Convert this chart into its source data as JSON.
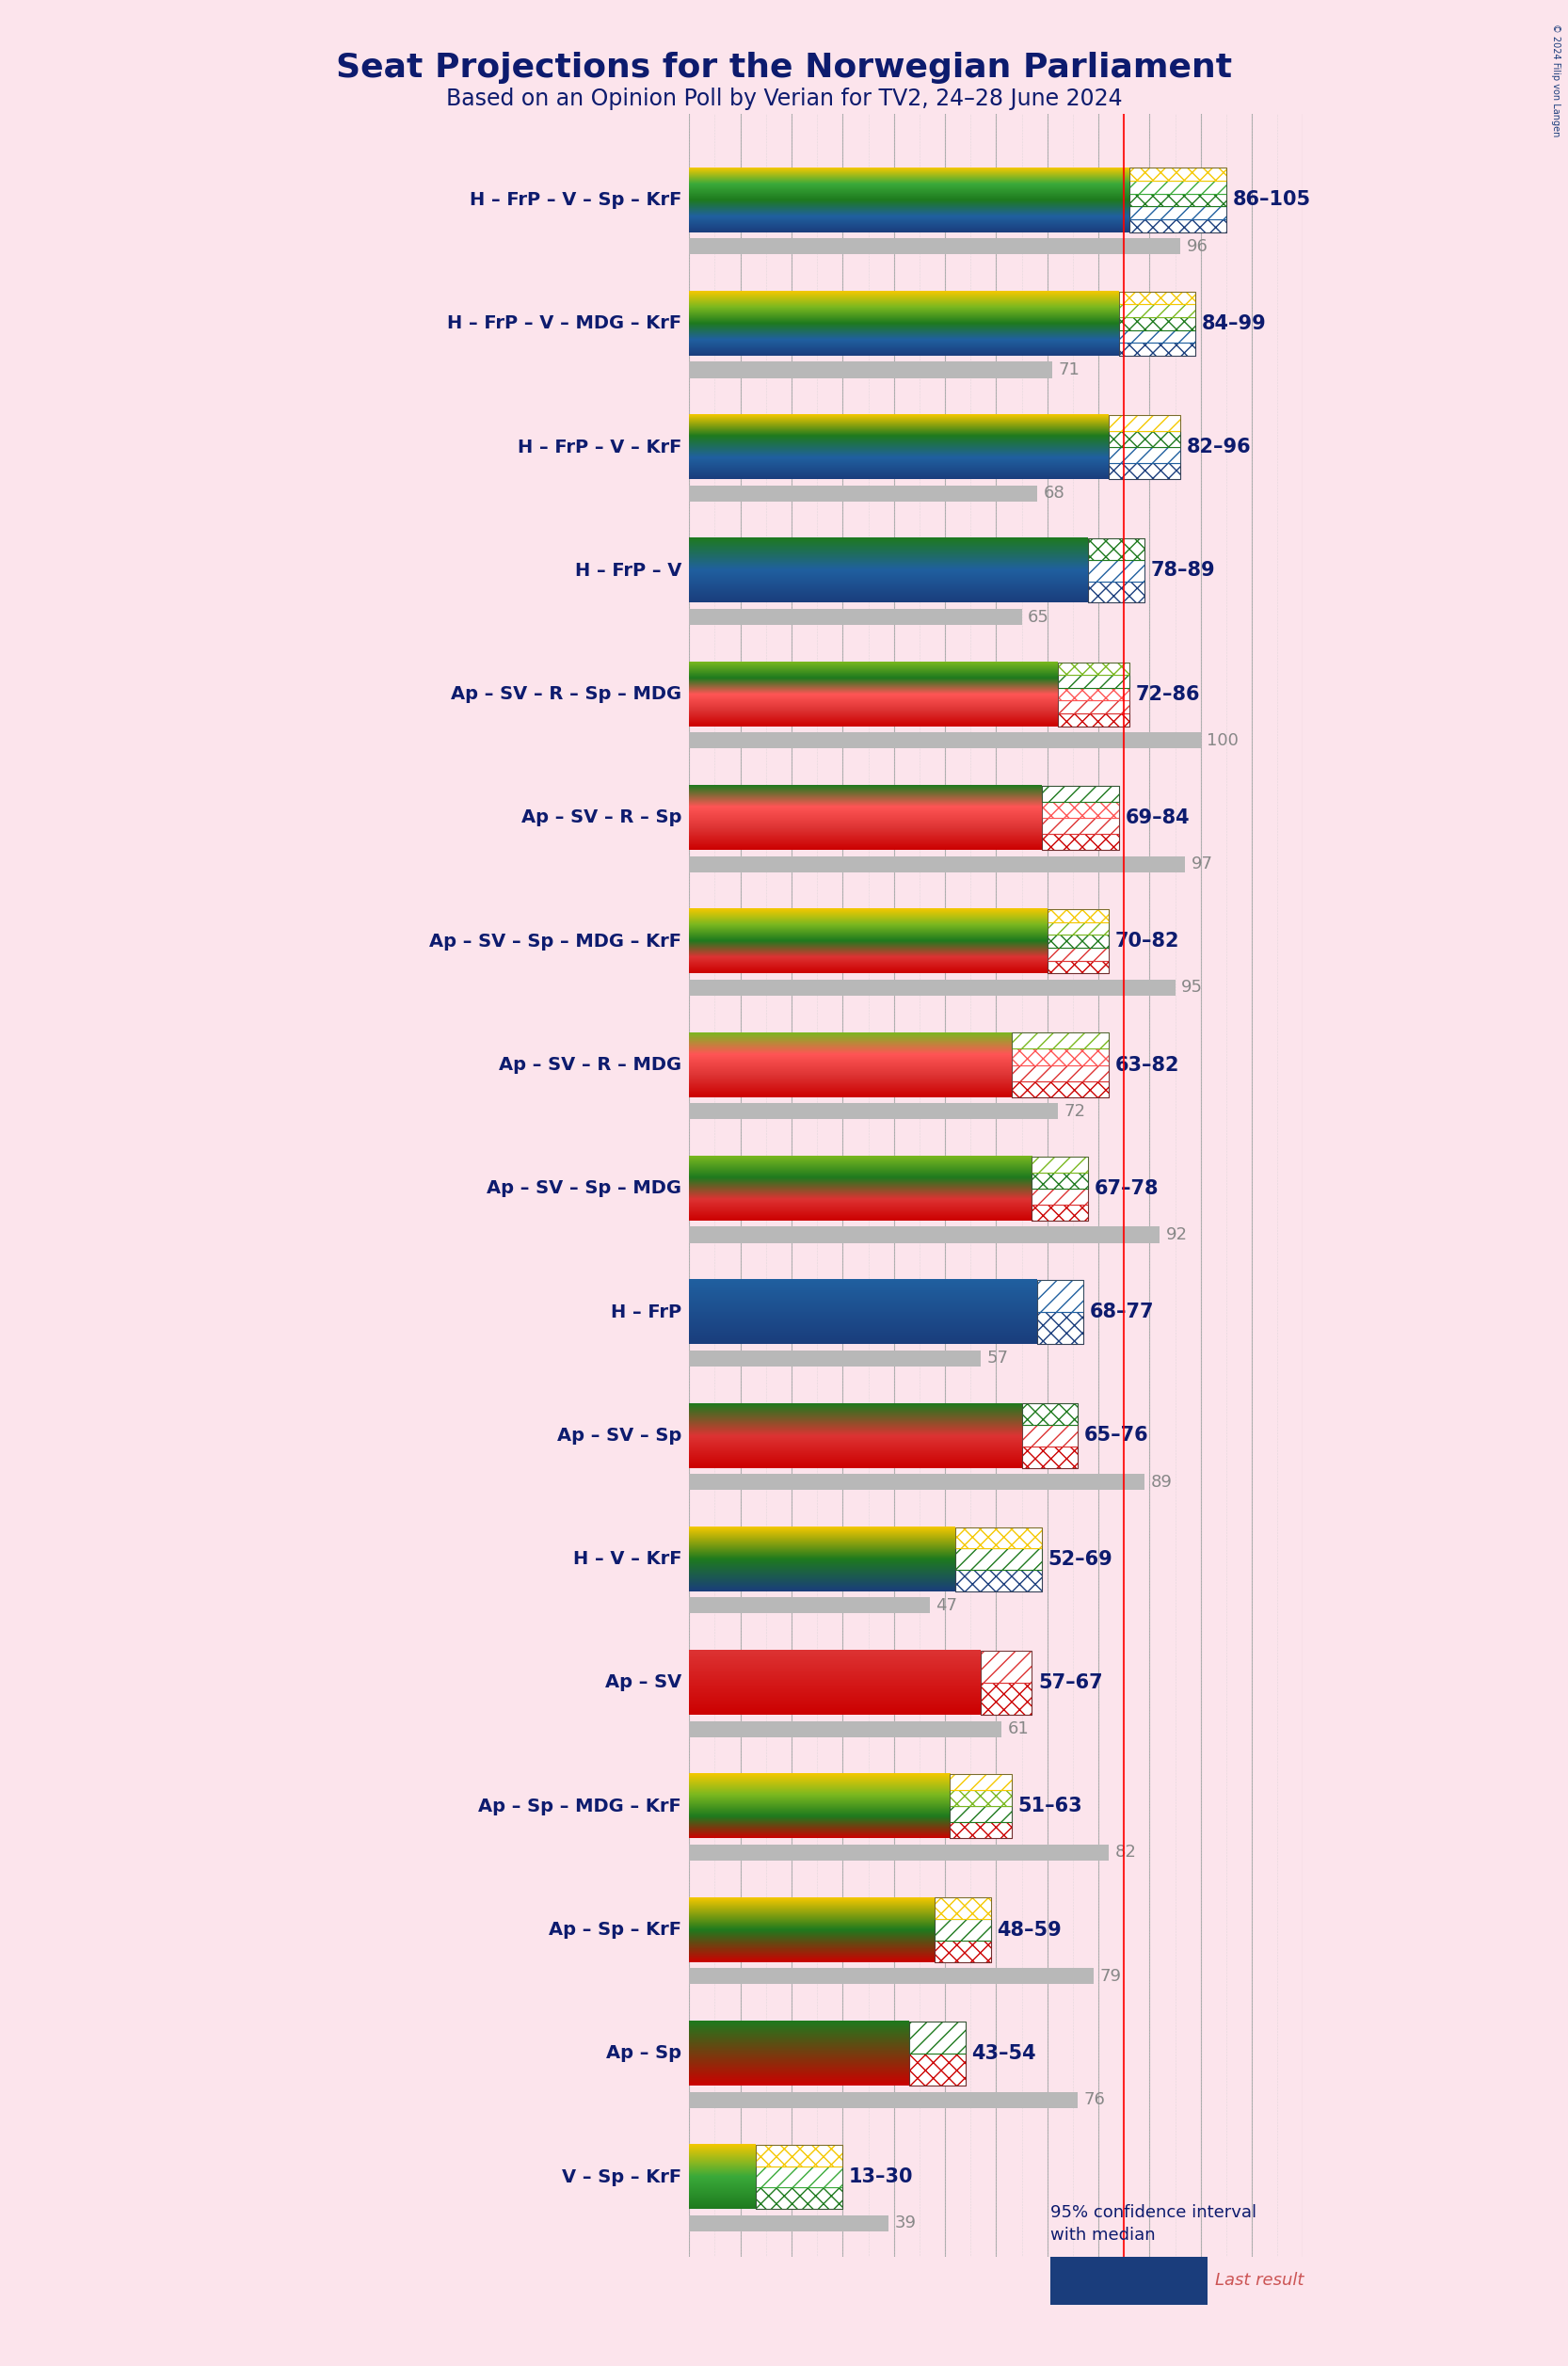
{
  "title": "Seat Projections for the Norwegian Parliament",
  "subtitle": "Based on an Opinion Poll by Verian for TV2, 24–28 June 2024",
  "background_color": "#fce4ec",
  "title_color": "#0d1b6e",
  "majority_line": 85,
  "x_max": 120,
  "coalitions": [
    {
      "label": "H – FrP – V – Sp – KrF",
      "ci_low": 86,
      "ci_high": 105,
      "median": 96,
      "last": 96,
      "colors": [
        "#1a3d7c",
        "#2060a0",
        "#1e7a1e",
        "#3aaa3a",
        "#f5c800"
      ],
      "underline": false
    },
    {
      "label": "H – FrP – V – MDG – KrF",
      "ci_low": 84,
      "ci_high": 99,
      "median": 71,
      "last": 71,
      "colors": [
        "#1a3d7c",
        "#2060a0",
        "#1e7a1e",
        "#7ab820",
        "#f5c800"
      ],
      "underline": false
    },
    {
      "label": "H – FrP – V – KrF",
      "ci_low": 82,
      "ci_high": 96,
      "median": 68,
      "last": 68,
      "colors": [
        "#1a3d7c",
        "#2060a0",
        "#1e7a1e",
        "#f5c800"
      ],
      "underline": false
    },
    {
      "label": "H – FrP – V",
      "ci_low": 78,
      "ci_high": 89,
      "median": 65,
      "last": 65,
      "colors": [
        "#1a3d7c",
        "#2060a0",
        "#1e7a1e"
      ],
      "underline": false
    },
    {
      "label": "Ap – SV – R – Sp – MDG",
      "ci_low": 72,
      "ci_high": 86,
      "median": 100,
      "last": 100,
      "colors": [
        "#cc0000",
        "#dd3333",
        "#ff5555",
        "#1e7a1e",
        "#7ab820"
      ],
      "underline": false
    },
    {
      "label": "Ap – SV – R – Sp",
      "ci_low": 69,
      "ci_high": 84,
      "median": 97,
      "last": 97,
      "colors": [
        "#cc0000",
        "#dd3333",
        "#ff5555",
        "#1e7a1e"
      ],
      "underline": false
    },
    {
      "label": "Ap – SV – Sp – MDG – KrF",
      "ci_low": 70,
      "ci_high": 82,
      "median": 95,
      "last": 95,
      "colors": [
        "#cc0000",
        "#dd3333",
        "#1e7a1e",
        "#7ab820",
        "#f5c800"
      ],
      "underline": false
    },
    {
      "label": "Ap – SV – R – MDG",
      "ci_low": 63,
      "ci_high": 82,
      "median": 72,
      "last": 72,
      "colors": [
        "#cc0000",
        "#dd3333",
        "#ff5555",
        "#7ab820"
      ],
      "underline": false
    },
    {
      "label": "Ap – SV – Sp – MDG",
      "ci_low": 67,
      "ci_high": 78,
      "median": 92,
      "last": 92,
      "colors": [
        "#cc0000",
        "#dd3333",
        "#1e7a1e",
        "#7ab820"
      ],
      "underline": false
    },
    {
      "label": "H – FrP",
      "ci_low": 68,
      "ci_high": 77,
      "median": 57,
      "last": 57,
      "colors": [
        "#1a3d7c",
        "#2060a0"
      ],
      "underline": false
    },
    {
      "label": "Ap – SV – Sp",
      "ci_low": 65,
      "ci_high": 76,
      "median": 89,
      "last": 89,
      "colors": [
        "#cc0000",
        "#dd3333",
        "#1e7a1e"
      ],
      "underline": false
    },
    {
      "label": "H – V – KrF",
      "ci_low": 52,
      "ci_high": 69,
      "median": 47,
      "last": 47,
      "colors": [
        "#1a3d7c",
        "#1e7a1e",
        "#f5c800"
      ],
      "underline": false
    },
    {
      "label": "Ap – SV",
      "ci_low": 57,
      "ci_high": 67,
      "median": 61,
      "last": 61,
      "colors": [
        "#cc0000",
        "#dd3333"
      ],
      "underline": true
    },
    {
      "label": "Ap – Sp – MDG – KrF",
      "ci_low": 51,
      "ci_high": 63,
      "median": 82,
      "last": 82,
      "colors": [
        "#cc0000",
        "#1e7a1e",
        "#7ab820",
        "#f5c800"
      ],
      "underline": false
    },
    {
      "label": "Ap – Sp – KrF",
      "ci_low": 48,
      "ci_high": 59,
      "median": 79,
      "last": 79,
      "colors": [
        "#cc0000",
        "#1e7a1e",
        "#f5c800"
      ],
      "underline": false
    },
    {
      "label": "Ap – Sp",
      "ci_low": 43,
      "ci_high": 54,
      "median": 76,
      "last": 76,
      "colors": [
        "#cc0000",
        "#1e7a1e"
      ],
      "underline": false
    },
    {
      "label": "V – Sp – KrF",
      "ci_low": 13,
      "ci_high": 30,
      "median": 39,
      "last": 39,
      "colors": [
        "#1e7a1e",
        "#3aaa3a",
        "#f5c800"
      ],
      "underline": false
    }
  ]
}
